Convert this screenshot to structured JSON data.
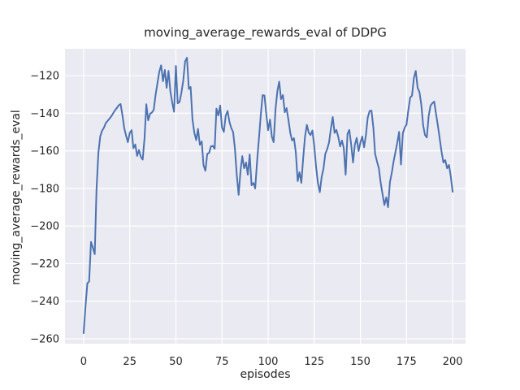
{
  "chart_data": {
    "type": "line",
    "title": "moving_average_rewards_eval of DDPG",
    "xlabel": "episodes",
    "ylabel": "moving_average_rewards_eval",
    "grid": true,
    "legend": "none",
    "xlim": [
      -10.1,
      207
    ],
    "ylim": [
      -262.6,
      -105.7
    ],
    "x_ticks": [
      0,
      25,
      50,
      75,
      100,
      125,
      150,
      175,
      200
    ],
    "x_tick_labels": [
      "0",
      "25",
      "50",
      "75",
      "100",
      "125",
      "150",
      "175",
      "200"
    ],
    "y_ticks": [
      -260,
      -240,
      -220,
      -200,
      -180,
      -160,
      -140,
      -120
    ],
    "y_tick_labels": [
      "−260",
      "−240",
      "−220",
      "−200",
      "−180",
      "−160",
      "−140",
      "−120"
    ],
    "style": {
      "plot_bg": "#eaeaf2",
      "grid_color": "#ffffff",
      "text_color": "#262626",
      "line_color": "#4c72b0"
    },
    "series": [
      {
        "name": "moving_average_rewards_eval",
        "color": "#4c72b0",
        "x_start": 0,
        "x_step": 1,
        "values": [
          -257,
          -243,
          -230.5,
          -229.5,
          -208.5,
          -211.5,
          -215,
          -180.5,
          -161,
          -152.3,
          -149.3,
          -147.7,
          -145.2,
          -144.1,
          -142.9,
          -141.6,
          -140,
          -138.5,
          -137.2,
          -135.8,
          -135.1,
          -140.8,
          -147.9,
          -152,
          -155.4,
          -150.5,
          -149,
          -158.6,
          -156.6,
          -162.7,
          -159.6,
          -163.2,
          -164.7,
          -153.3,
          -135.2,
          -143.8,
          -140.3,
          -139.6,
          -138.2,
          -130.2,
          -124,
          -118,
          -114.5,
          -123,
          -117,
          -126.5,
          -117.5,
          -128.4,
          -134.2,
          -139.2,
          -114.8,
          -134.7,
          -134,
          -129,
          -122.5,
          -112.5,
          -110.5,
          -127.1,
          -126,
          -143.4,
          -150.5,
          -154.3,
          -148.3,
          -156.8,
          -155,
          -167.7,
          -170.6,
          -161.6,
          -161.1,
          -157.6,
          -157.4,
          -158.9,
          -137.5,
          -141.2,
          -135.9,
          -147.6,
          -149.9,
          -141.3,
          -138.8,
          -144.4,
          -147.9,
          -150,
          -158.6,
          -172.8,
          -183.4,
          -170.8,
          -162.8,
          -169.3,
          -166.2,
          -172.7,
          -161.9,
          -178.3,
          -177.1,
          -180,
          -165.7,
          -153.5,
          -141.3,
          -130.4,
          -130.6,
          -140.3,
          -149,
          -143.4,
          -152.5,
          -155.4,
          -137.8,
          -128.2,
          -123.2,
          -132.5,
          -130.4,
          -139.5,
          -137.3,
          -143.5,
          -150.5,
          -154.5,
          -153.3,
          -161,
          -176.1,
          -171.4,
          -177,
          -163.7,
          -152.5,
          -146.2,
          -150.4,
          -151.6,
          -149.2,
          -157.6,
          -168.8,
          -177.1,
          -182,
          -173.8,
          -169.6,
          -161.6,
          -159.1,
          -155.5,
          -148.4,
          -142,
          -150.5,
          -148.9,
          -152.5,
          -157.6,
          -154.5,
          -158.5,
          -172.7,
          -151,
          -148.9,
          -156.6,
          -166.2,
          -156.8,
          -153.1,
          -160.1,
          -155.6,
          -152.4,
          -158.1,
          -151.5,
          -142.3,
          -138.8,
          -138.6,
          -147.6,
          -161.6,
          -165.7,
          -169.3,
          -176.9,
          -183,
          -188.8,
          -184.8,
          -190,
          -176.7,
          -171.7,
          -165.7,
          -160.7,
          -155.6,
          -149.9,
          -167.3,
          -150.7,
          -147.6,
          -146.1,
          -138.3,
          -131.6,
          -130.7,
          -121.2,
          -117.5,
          -126.5,
          -128.7,
          -135.3,
          -146.4,
          -151.5,
          -152.9,
          -141.5,
          -135.9,
          -134.7,
          -133.8,
          -140.5,
          -146.5,
          -153.6,
          -160.6,
          -166.2,
          -164.9,
          -169.3,
          -167.5,
          -173.6,
          -181.8
        ]
      }
    ]
  }
}
